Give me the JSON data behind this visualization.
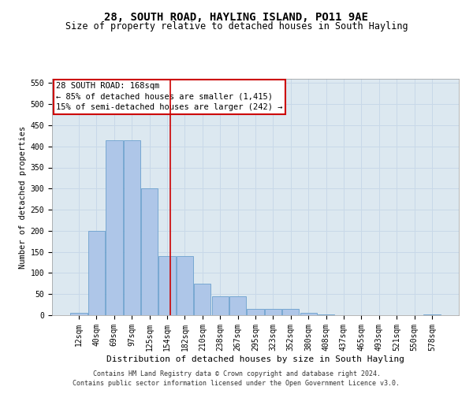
{
  "title": "28, SOUTH ROAD, HAYLING ISLAND, PO11 9AE",
  "subtitle": "Size of property relative to detached houses in South Hayling",
  "xlabel": "Distribution of detached houses by size in South Hayling",
  "ylabel": "Number of detached properties",
  "footnote1": "Contains HM Land Registry data © Crown copyright and database right 2024.",
  "footnote2": "Contains public sector information licensed under the Open Government Licence v3.0.",
  "bar_labels": [
    "12sqm",
    "40sqm",
    "69sqm",
    "97sqm",
    "125sqm",
    "154sqm",
    "182sqm",
    "210sqm",
    "238sqm",
    "267sqm",
    "295sqm",
    "323sqm",
    "352sqm",
    "380sqm",
    "408sqm",
    "437sqm",
    "465sqm",
    "493sqm",
    "521sqm",
    "550sqm",
    "578sqm"
  ],
  "bar_values": [
    5,
    200,
    415,
    415,
    300,
    140,
    140,
    75,
    45,
    45,
    15,
    15,
    15,
    5,
    1,
    0,
    0,
    0,
    0,
    0,
    1
  ],
  "bar_color": "#aec6e8",
  "bar_edge_color": "#5a96c8",
  "grid_color": "#c8d8e8",
  "background_color": "#dce8f0",
  "annotation_line1": "28 SOUTH ROAD: 168sqm",
  "annotation_line2": "← 85% of detached houses are smaller (1,415)",
  "annotation_line3": "15% of semi-detached houses are larger (242) →",
  "annotation_box_color": "#ffffff",
  "annotation_box_edge_color": "#cc0000",
  "vline_x_index": 5.18,
  "vline_color": "#cc0000",
  "ylim": [
    0,
    560
  ],
  "yticks": [
    0,
    50,
    100,
    150,
    200,
    250,
    300,
    350,
    400,
    450,
    500,
    550
  ],
  "title_fontsize": 10,
  "subtitle_fontsize": 8.5,
  "xlabel_fontsize": 8,
  "ylabel_fontsize": 7.5,
  "tick_fontsize": 7,
  "annotation_fontsize": 7.5,
  "footnote_fontsize": 6
}
